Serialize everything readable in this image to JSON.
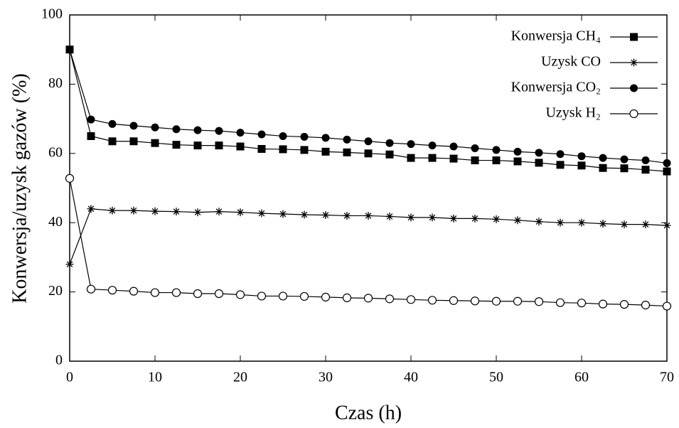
{
  "chart_data": {
    "type": "line",
    "x_label": "Czas (h)",
    "y_label": "Konwersja/uzysk gazów (%)",
    "x": [
      0,
      2.5,
      5,
      7.5,
      10,
      12.5,
      15,
      17.5,
      20,
      22.5,
      25,
      27.5,
      30,
      32.5,
      35,
      37.5,
      40,
      42.5,
      45,
      47.5,
      50,
      52.5,
      55,
      57.5,
      60,
      62.5,
      65,
      67.5,
      70
    ],
    "series": [
      {
        "name": "Konwersja CH₄",
        "color": "#000000",
        "marker": "square",
        "values": [
          90,
          65,
          63.5,
          63.5,
          63,
          62.5,
          62.3,
          62.3,
          62,
          61.3,
          61.2,
          61,
          60.5,
          60.3,
          60,
          59.7,
          58.7,
          58.7,
          58.5,
          58,
          58,
          57.7,
          57.3,
          56.7,
          56.5,
          55.8,
          55.7,
          55.3,
          54.8
        ]
      },
      {
        "name": "Uzysk CO",
        "color": "#000000",
        "marker": "star",
        "values": [
          28,
          44,
          43.5,
          43.5,
          43.3,
          43.2,
          43,
          43.2,
          43,
          42.7,
          42.5,
          42.3,
          42.2,
          42,
          42,
          41.8,
          41.5,
          41.5,
          41.2,
          41.2,
          41,
          40.7,
          40.3,
          40,
          40,
          39.7,
          39.5,
          39.5,
          39.2
        ]
      },
      {
        "name": "Konwersja CO₂",
        "color": "#000000",
        "marker": "circle",
        "values": [
          90,
          69.8,
          68.5,
          68,
          67.5,
          67,
          66.7,
          66.5,
          66,
          65.5,
          65,
          64.8,
          64.5,
          64,
          63.5,
          63,
          62.7,
          62.3,
          62,
          61.5,
          61,
          60.5,
          60.2,
          59.8,
          59.2,
          58.7,
          58.3,
          58,
          57.2
        ]
      },
      {
        "name": "Uzysk H₂",
        "color": "#000000",
        "marker": "open-circle",
        "values": [
          52.8,
          20.8,
          20.5,
          20.2,
          19.8,
          19.8,
          19.5,
          19.5,
          19.2,
          18.8,
          18.8,
          18.7,
          18.5,
          18.3,
          18.2,
          18,
          17.8,
          17.6,
          17.5,
          17.4,
          17.3,
          17.3,
          17.2,
          16.9,
          16.8,
          16.5,
          16.4,
          16.2,
          15.9
        ]
      }
    ],
    "xlim": [
      0,
      70
    ],
    "xticks": [
      0,
      10,
      20,
      30,
      40,
      50,
      60,
      70
    ],
    "ylim": [
      0,
      100
    ],
    "yticks": [
      0,
      20,
      40,
      60,
      80,
      100
    ],
    "legend": "upper right"
  }
}
